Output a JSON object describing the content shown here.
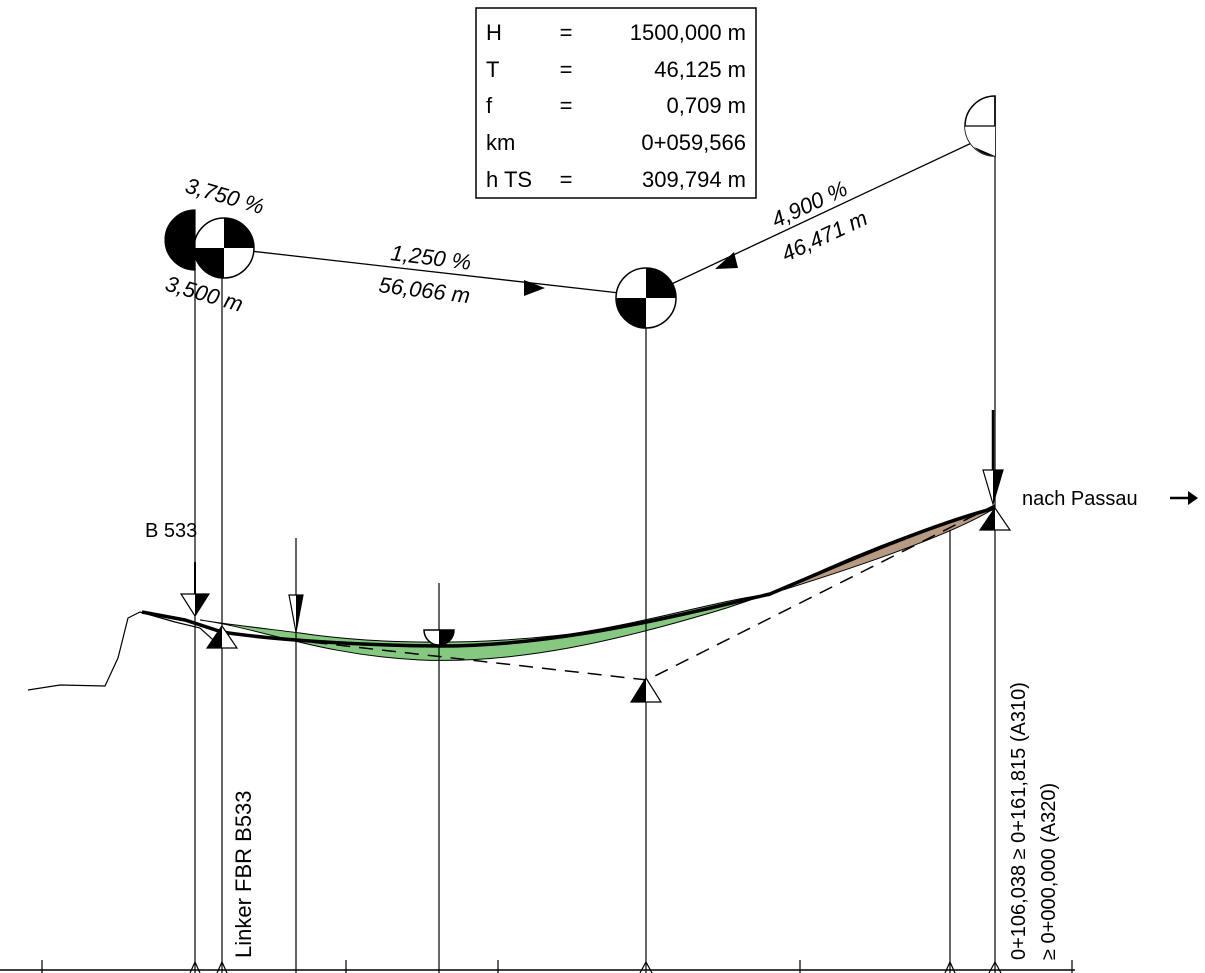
{
  "curve_table": {
    "rows": [
      {
        "label": "H",
        "eq": "=",
        "value": "1500,000 m"
      },
      {
        "label": "T",
        "eq": "=",
        "value": "46,125 m"
      },
      {
        "label": "f",
        "eq": "=",
        "value": "0,709 m"
      },
      {
        "label": "km",
        "eq": "",
        "value": "0+059,566"
      },
      {
        "label": "h TS",
        "eq": "=",
        "value": "309,794 m"
      }
    ]
  },
  "tangent_left": {
    "grade": "3,750 %",
    "length": "3,500 m"
  },
  "tangent_middle": {
    "grade": "1,250 %",
    "length": "56,066 m"
  },
  "tangent_right": {
    "grade": "4,900 %",
    "length": "46,471 m"
  },
  "labels": {
    "b533": "B 533",
    "nach_passau": "nach Passau",
    "linker_fbr": "Linker FBR B533",
    "station_line1": "0+106,038 ≥ 0+161,815 (A310)",
    "station_line2": "≥ 0+000,000 (A320)"
  },
  "colors": {
    "fill_green": "#84c97f",
    "fill_brown": "#b79a82",
    "line": "#000000"
  }
}
